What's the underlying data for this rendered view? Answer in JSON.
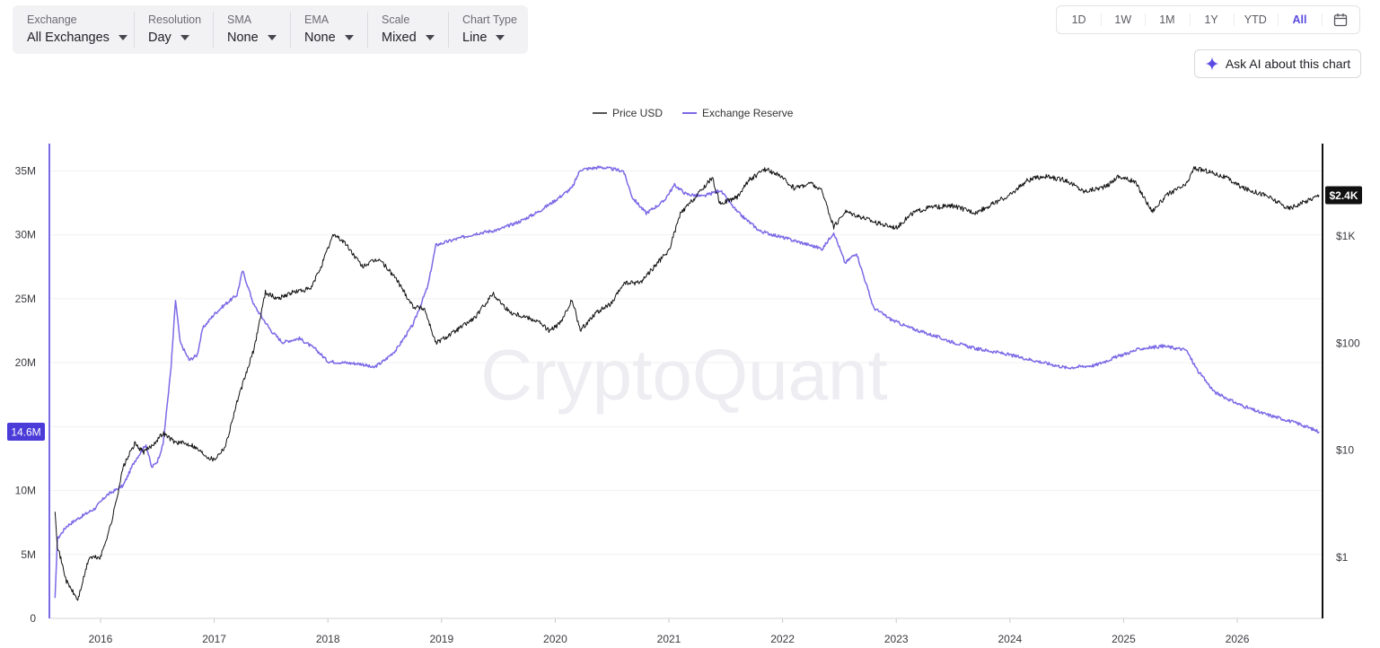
{
  "controls": [
    {
      "label": "Exchange",
      "value": "All Exchanges"
    },
    {
      "label": "Resolution",
      "value": "Day"
    },
    {
      "label": "SMA",
      "value": "None"
    },
    {
      "label": "EMA",
      "value": "None"
    },
    {
      "label": "Scale",
      "value": "Mixed"
    },
    {
      "label": "Chart Type",
      "value": "Line"
    }
  ],
  "ranges": [
    "1D",
    "1W",
    "1M",
    "1Y",
    "YTD",
    "All"
  ],
  "active_range": "All",
  "ask_ai_label": "Ask AI about this chart",
  "watermark": "CryptoQuant",
  "colors": {
    "price": "#111111",
    "reserve": "#7b6ae6",
    "accent": "#4b3bd9"
  },
  "chart_data": {
    "type": "line",
    "legend": [
      "Price USD",
      "Exchange Reserve"
    ],
    "legend_position": "top-center",
    "x_ticks": [
      "2016",
      "2017",
      "2018",
      "2019",
      "2020",
      "2021",
      "2022",
      "2023",
      "2024",
      "2025",
      "2026"
    ],
    "y_left": {
      "ticks": [
        "0",
        "5M",
        "10M",
        "15M",
        "20M",
        "25M",
        "30M",
        "35M"
      ],
      "range": [
        0,
        37000000
      ],
      "current_label": "14.6M"
    },
    "y_right": {
      "ticks": [
        "$1",
        "$10",
        "$100",
        "$1K"
      ],
      "scale": "log",
      "current_label": "$2.4K"
    },
    "series": [
      {
        "name": "Exchange Reserve",
        "axis": "left",
        "points": [
          [
            2015.6,
            1.5
          ],
          [
            2015.62,
            6.2
          ],
          [
            2015.7,
            7.2
          ],
          [
            2015.8,
            7.8
          ],
          [
            2015.95,
            8.6
          ],
          [
            2016.05,
            9.6
          ],
          [
            2016.2,
            10.4
          ],
          [
            2016.3,
            12.3
          ],
          [
            2016.4,
            13.6
          ],
          [
            2016.45,
            11.8
          ],
          [
            2016.5,
            12.3
          ],
          [
            2016.55,
            13.6
          ],
          [
            2016.62,
            19.6
          ],
          [
            2016.66,
            24.9
          ],
          [
            2016.7,
            21.6
          ],
          [
            2016.78,
            20.2
          ],
          [
            2016.85,
            20.6
          ],
          [
            2016.9,
            22.7
          ],
          [
            2017.0,
            23.8
          ],
          [
            2017.1,
            24.6
          ],
          [
            2017.2,
            25.3
          ],
          [
            2017.25,
            27.2
          ],
          [
            2017.35,
            24.5
          ],
          [
            2017.5,
            22.5
          ],
          [
            2017.6,
            21.6
          ],
          [
            2017.75,
            21.9
          ],
          [
            2017.9,
            21.0
          ],
          [
            2018.0,
            20.1
          ],
          [
            2018.15,
            20.0
          ],
          [
            2018.3,
            19.9
          ],
          [
            2018.4,
            19.6
          ],
          [
            2018.5,
            20.2
          ],
          [
            2018.6,
            21.0
          ],
          [
            2018.75,
            23.0
          ],
          [
            2018.88,
            26.0
          ],
          [
            2018.95,
            29.2
          ],
          [
            2019.1,
            29.6
          ],
          [
            2019.3,
            30.1
          ],
          [
            2019.5,
            30.4
          ],
          [
            2019.7,
            31.1
          ],
          [
            2019.85,
            31.8
          ],
          [
            2020.0,
            32.7
          ],
          [
            2020.15,
            33.7
          ],
          [
            2020.22,
            35.1
          ],
          [
            2020.4,
            35.3
          ],
          [
            2020.6,
            35.0
          ],
          [
            2020.68,
            32.9
          ],
          [
            2020.8,
            31.7
          ],
          [
            2020.95,
            32.6
          ],
          [
            2021.05,
            33.9
          ],
          [
            2021.15,
            33.2
          ],
          [
            2021.3,
            33.0
          ],
          [
            2021.45,
            33.5
          ],
          [
            2021.6,
            31.8
          ],
          [
            2021.8,
            30.3
          ],
          [
            2022.0,
            29.8
          ],
          [
            2022.2,
            29.3
          ],
          [
            2022.35,
            28.9
          ],
          [
            2022.45,
            30.2
          ],
          [
            2022.55,
            27.8
          ],
          [
            2022.65,
            28.6
          ],
          [
            2022.8,
            24.3
          ],
          [
            2022.95,
            23.4
          ],
          [
            2023.1,
            22.8
          ],
          [
            2023.3,
            22.2
          ],
          [
            2023.5,
            21.6
          ],
          [
            2023.7,
            21.1
          ],
          [
            2023.9,
            20.8
          ],
          [
            2024.1,
            20.4
          ],
          [
            2024.25,
            20.1
          ],
          [
            2024.5,
            19.6
          ],
          [
            2024.75,
            19.8
          ],
          [
            2024.95,
            20.5
          ],
          [
            2025.15,
            21.1
          ],
          [
            2025.35,
            21.3
          ],
          [
            2025.55,
            21.0
          ],
          [
            2025.65,
            19.4
          ],
          [
            2025.8,
            17.7
          ],
          [
            2026.0,
            16.8
          ],
          [
            2026.2,
            16.1
          ],
          [
            2026.4,
            15.6
          ],
          [
            2026.55,
            15.2
          ],
          [
            2026.72,
            14.6
          ]
        ]
      },
      {
        "name": "Price USD",
        "axis": "right",
        "points": [
          [
            2015.6,
            2.8
          ],
          [
            2015.62,
            1.3
          ],
          [
            2015.7,
            0.6
          ],
          [
            2015.8,
            0.4
          ],
          [
            2015.9,
            1.0
          ],
          [
            2016.0,
            1.0
          ],
          [
            2016.1,
            2.2
          ],
          [
            2016.2,
            7.0
          ],
          [
            2016.3,
            11.5
          ],
          [
            2016.38,
            9.6
          ],
          [
            2016.45,
            11.0
          ],
          [
            2016.55,
            14.5
          ],
          [
            2016.65,
            12.0
          ],
          [
            2016.8,
            11.3
          ],
          [
            2016.95,
            8.6
          ],
          [
            2017.0,
            8.2
          ],
          [
            2017.1,
            11.0
          ],
          [
            2017.2,
            28.0
          ],
          [
            2017.35,
            88.0
          ],
          [
            2017.45,
            300
          ],
          [
            2017.55,
            260
          ],
          [
            2017.7,
            300
          ],
          [
            2017.85,
            320
          ],
          [
            2017.95,
            550
          ],
          [
            2018.05,
            1050
          ],
          [
            2018.15,
            860
          ],
          [
            2018.3,
            520
          ],
          [
            2018.45,
            610
          ],
          [
            2018.6,
            400
          ],
          [
            2018.75,
            220
          ],
          [
            2018.85,
            210
          ],
          [
            2018.95,
            100
          ],
          [
            2019.1,
            125
          ],
          [
            2019.3,
            175
          ],
          [
            2019.45,
            290
          ],
          [
            2019.6,
            195
          ],
          [
            2019.75,
            175
          ],
          [
            2019.85,
            160
          ],
          [
            2019.95,
            130
          ],
          [
            2020.05,
            155
          ],
          [
            2020.15,
            255
          ],
          [
            2020.22,
            130
          ],
          [
            2020.35,
            190
          ],
          [
            2020.5,
            235
          ],
          [
            2020.6,
            360
          ],
          [
            2020.75,
            370
          ],
          [
            2020.9,
            560
          ],
          [
            2021.0,
            730
          ],
          [
            2021.1,
            1600
          ],
          [
            2021.25,
            2400
          ],
          [
            2021.38,
            3500
          ],
          [
            2021.45,
            2000
          ],
          [
            2021.6,
            2300
          ],
          [
            2021.7,
            3300
          ],
          [
            2021.85,
            4200
          ],
          [
            2021.95,
            3800
          ],
          [
            2022.1,
            2800
          ],
          [
            2022.25,
            3100
          ],
          [
            2022.35,
            2600
          ],
          [
            2022.45,
            1200
          ],
          [
            2022.55,
            1700
          ],
          [
            2022.7,
            1500
          ],
          [
            2022.85,
            1300
          ],
          [
            2023.0,
            1200
          ],
          [
            2023.15,
            1650
          ],
          [
            2023.3,
            1850
          ],
          [
            2023.5,
            1900
          ],
          [
            2023.7,
            1650
          ],
          [
            2023.85,
            2000
          ],
          [
            2024.0,
            2400
          ],
          [
            2024.15,
            3300
          ],
          [
            2024.3,
            3600
          ],
          [
            2024.5,
            3300
          ],
          [
            2024.65,
            2600
          ],
          [
            2024.85,
            2900
          ],
          [
            2024.95,
            3600
          ],
          [
            2025.1,
            3200
          ],
          [
            2025.25,
            1700
          ],
          [
            2025.4,
            2500
          ],
          [
            2025.55,
            3000
          ],
          [
            2025.62,
            4300
          ],
          [
            2025.75,
            4000
          ],
          [
            2025.9,
            3500
          ],
          [
            2026.05,
            2800
          ],
          [
            2026.25,
            2400
          ],
          [
            2026.45,
            1800
          ],
          [
            2026.6,
            2100
          ],
          [
            2026.72,
            2400
          ]
        ]
      }
    ]
  }
}
